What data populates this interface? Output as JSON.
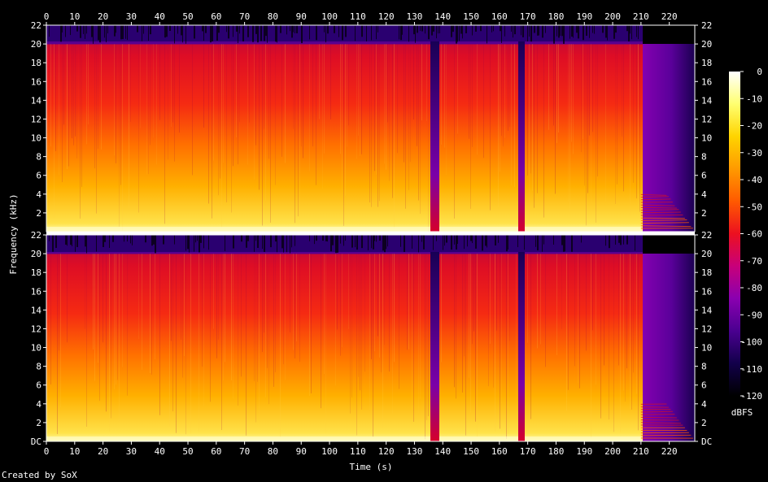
{
  "chart_data": {
    "type": "heatmap",
    "xlabel": "Time (s)",
    "ylabel": "Frequency (kHz)",
    "x_ticks": [
      0,
      10,
      20,
      30,
      40,
      50,
      60,
      70,
      80,
      90,
      100,
      110,
      120,
      130,
      140,
      150,
      160,
      170,
      180,
      190,
      200,
      210,
      220
    ],
    "xlim": [
      0,
      229
    ],
    "channels": [
      {
        "y_ticks": [
          "2",
          "4",
          "6",
          "8",
          "10",
          "12",
          "14",
          "16",
          "18",
          "20",
          "22"
        ]
      },
      {
        "y_ticks": [
          "DC",
          "2",
          "4",
          "6",
          "8",
          "10",
          "12",
          "14",
          "16",
          "18",
          "20",
          "22"
        ]
      }
    ],
    "ylim_khz": [
      0,
      22
    ],
    "lowpass_cutoff_khz": 20,
    "quiet_sections_s": [
      [
        135.5,
        138.5
      ],
      [
        166.5,
        169
      ]
    ],
    "fadeout_start_s": 210,
    "colorbar": {
      "label": "dBFS",
      "ticks": [
        0,
        -10,
        -20,
        -30,
        -40,
        -50,
        -60,
        -70,
        -80,
        -90,
        -100,
        -110,
        -120
      ],
      "range": [
        -120,
        0
      ],
      "colors": [
        "#000000",
        "#12004a",
        "#4a0090",
        "#8a00b0",
        "#c8007a",
        "#ec1020",
        "#ff5a00",
        "#ff9a00",
        "#ffd400",
        "#ffff70",
        "#ffffff"
      ]
    }
  },
  "footer": {
    "credit": "Created by SoX"
  }
}
